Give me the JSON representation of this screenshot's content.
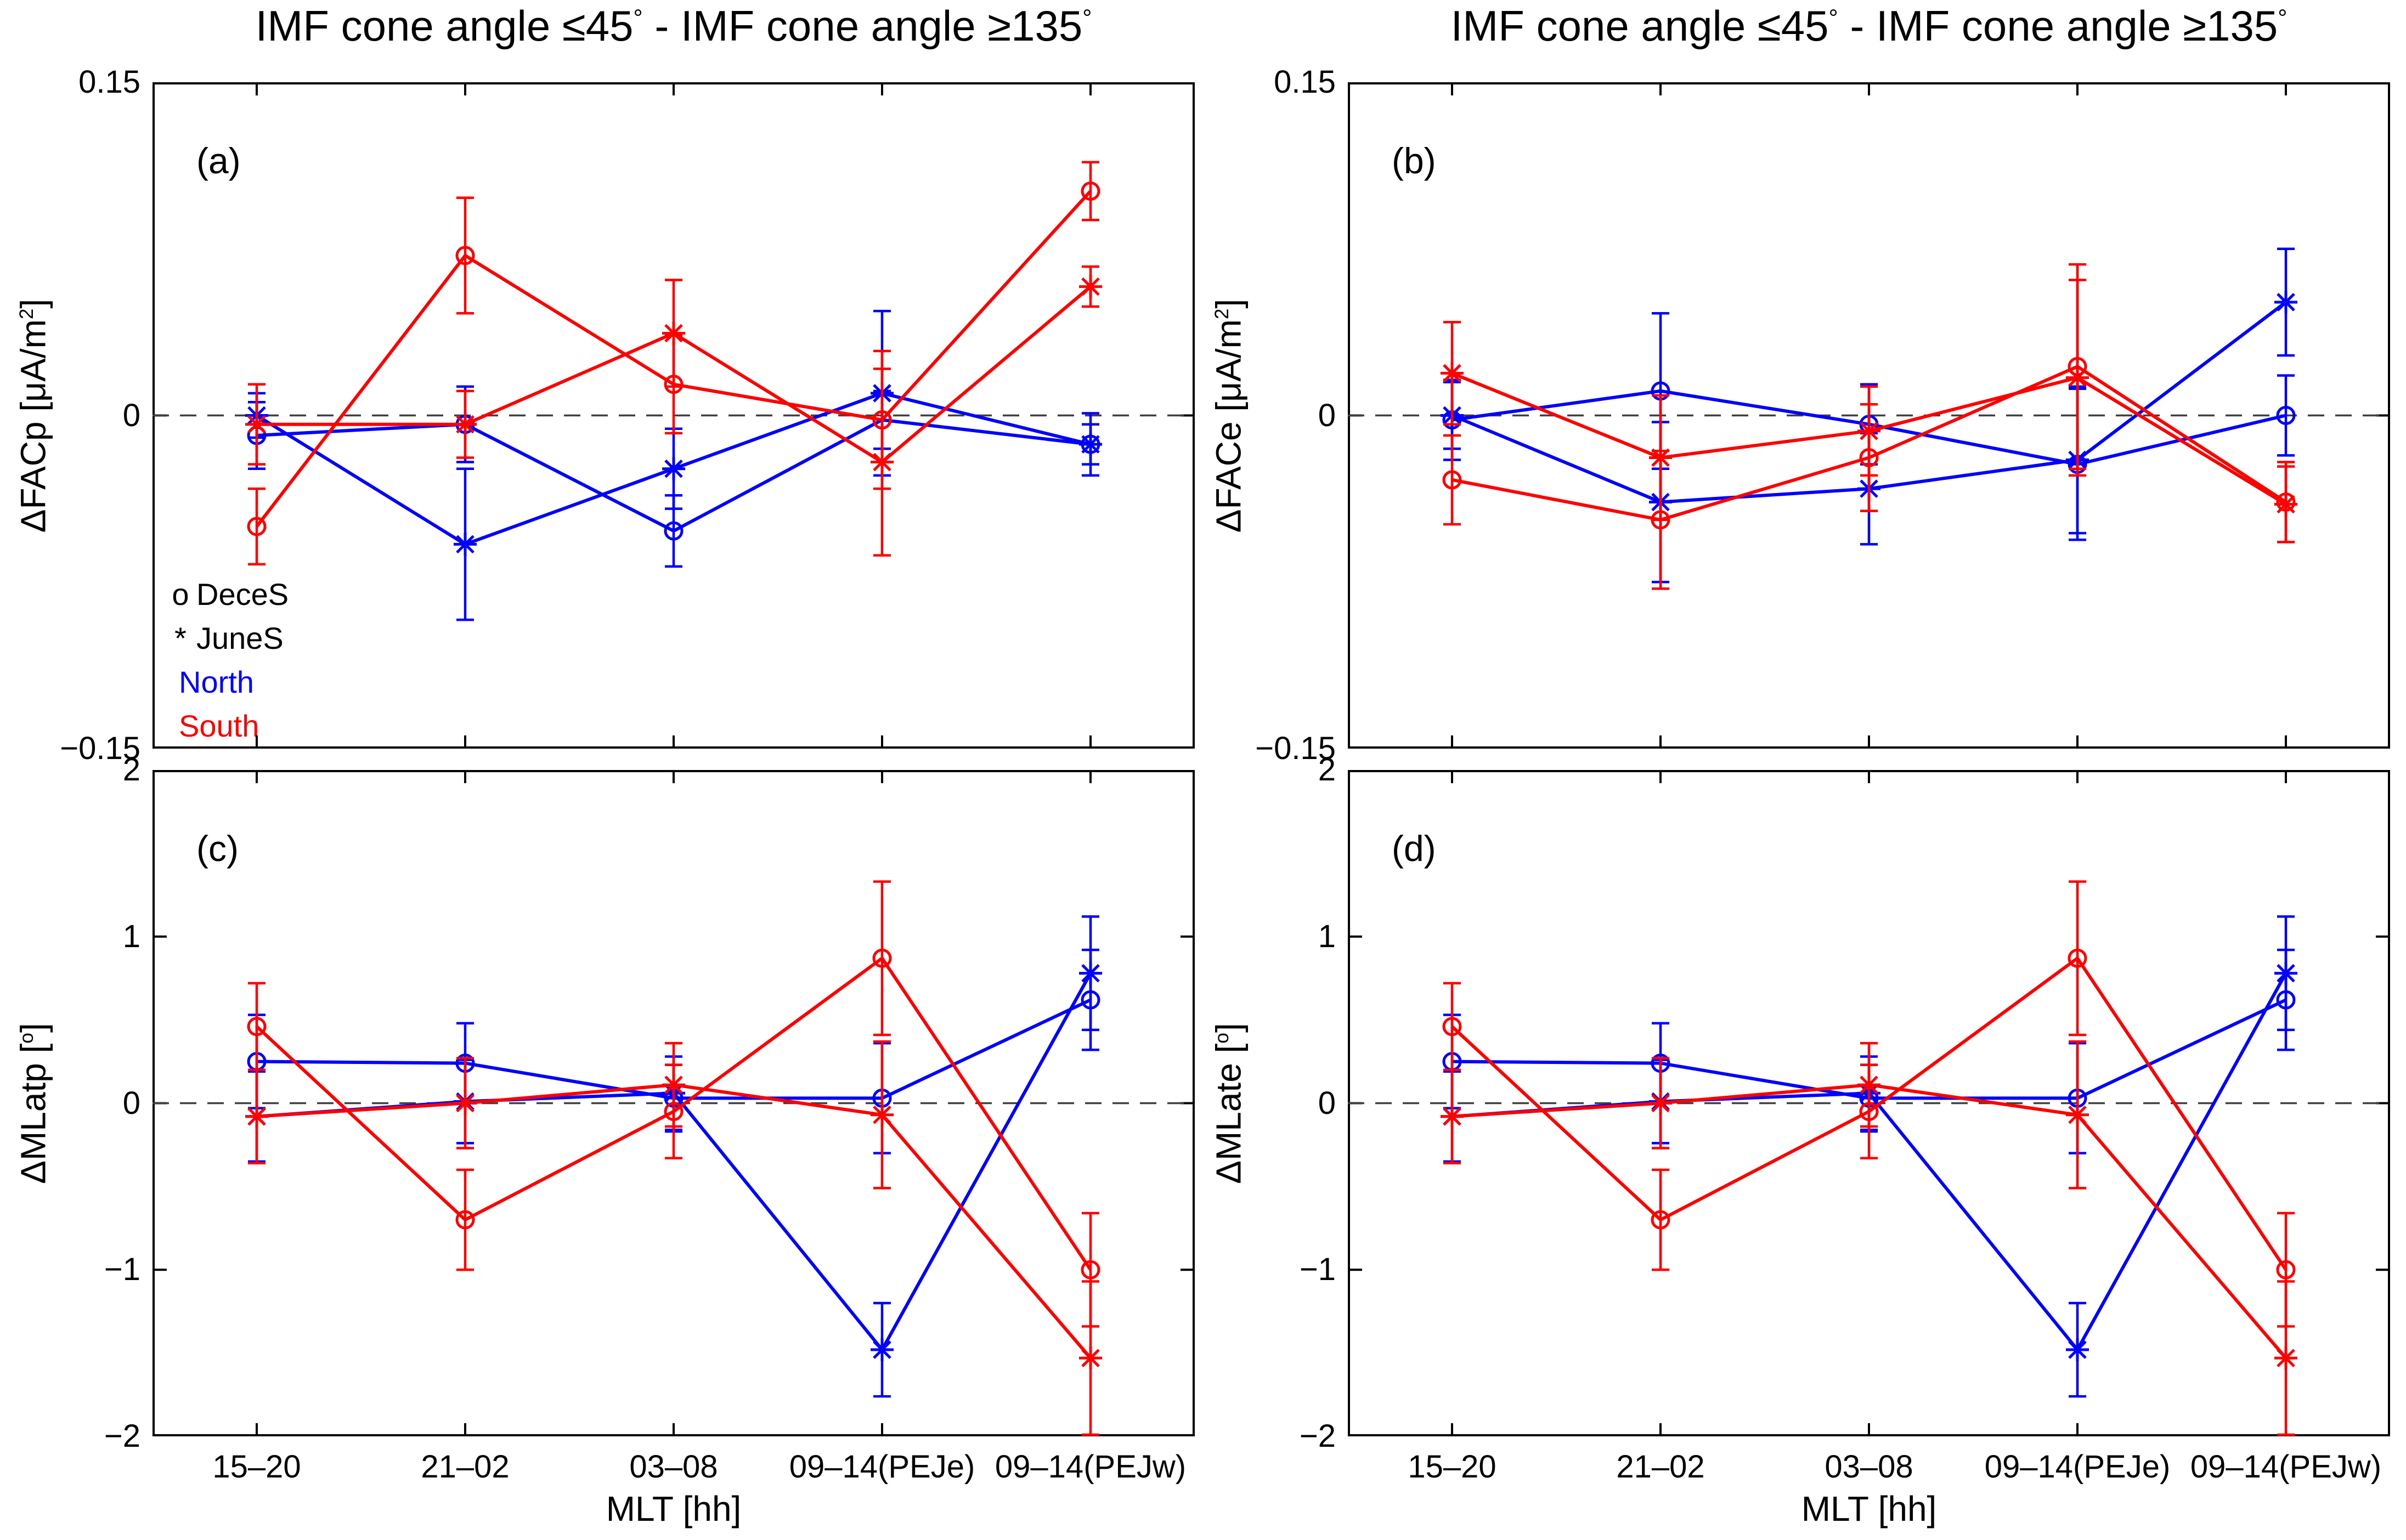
{
  "titles": {
    "left": {
      "parts": [
        "IMF cone angle ≤45",
        "°",
        " - IMF cone angle ≥135",
        "°"
      ]
    },
    "right": {
      "parts": [
        "IMF cone angle ≤45",
        "°",
        " - IMF cone angle ≥135",
        "°"
      ]
    }
  },
  "x_axis": {
    "label": "MLT [hh]",
    "categories": [
      "15–20",
      "21–02",
      "03–08",
      "09–14(PEJe)",
      "09–14(PEJw)"
    ]
  },
  "legend": {
    "items": [
      {
        "marker": "o",
        "label": "DeceS",
        "color": "#000000"
      },
      {
        "marker": "*",
        "label": "JuneS",
        "color": "#000000"
      },
      {
        "marker": "",
        "label": "North",
        "color": "#0000FF"
      },
      {
        "marker": "",
        "label": "South",
        "color": "#FF0000"
      }
    ]
  },
  "colors": {
    "north": "#0000FF",
    "south": "#FF0000",
    "zero_line": "#404040",
    "frame": "#000000"
  },
  "chart_data": [
    {
      "id": "a",
      "type": "line",
      "panel_label": "(a)",
      "ylabel": "ΔFACp [μA/m2]",
      "ylabel_parts": {
        "base": "ΔFACp [μA/m",
        "sup": "2",
        "close": "]"
      },
      "ylim": [
        -0.15,
        0.15
      ],
      "yticks": [
        0.15,
        0,
        -0.15
      ],
      "ytick_labels": [
        "0.15",
        "0",
        "−0.15"
      ],
      "zero_line": true,
      "show_xtick_labels": false,
      "series": [
        {
          "name": "North DeceS",
          "hemisphere": "North",
          "season": "DeceS",
          "color": "#0000FF",
          "marker": "o",
          "values": [
            -0.009,
            -0.004,
            -0.052,
            -0.002,
            -0.013
          ],
          "errors": [
            0.015,
            0.017,
            0.016,
            0.013,
            0.009
          ]
        },
        {
          "name": "North JuneS",
          "hemisphere": "North",
          "season": "JuneS",
          "color": "#0000FF",
          "marker": "*",
          "values": [
            0.0,
            -0.058,
            -0.024,
            0.01,
            -0.013
          ],
          "errors": [
            0.01,
            0.034,
            0.018,
            0.037,
            0.014
          ]
        },
        {
          "name": "South DeceS",
          "hemisphere": "South",
          "season": "DeceS",
          "color": "#FF0000",
          "marker": "o",
          "values": [
            -0.05,
            0.072,
            0.014,
            -0.002,
            0.101
          ],
          "errors": [
            0.017,
            0.026,
            0.022,
            0.031,
            0.013
          ]
        },
        {
          "name": "South JuneS",
          "hemisphere": "South",
          "season": "JuneS",
          "color": "#FF0000",
          "marker": "*",
          "values": [
            -0.004,
            -0.004,
            0.037,
            -0.021,
            0.058
          ],
          "errors": [
            0.018,
            0.015,
            0.024,
            0.042,
            0.009
          ]
        }
      ]
    },
    {
      "id": "b",
      "type": "line",
      "panel_label": "(b)",
      "ylabel": "ΔFACe [μA/m2]",
      "ylabel_parts": {
        "base": "ΔFACe [μA/m",
        "sup": "2",
        "close": "]"
      },
      "ylim": [
        -0.15,
        0.15
      ],
      "yticks": [
        0.15,
        0,
        -0.15
      ],
      "ytick_labels": [
        "0.15",
        "0",
        "−0.15"
      ],
      "zero_line": true,
      "show_xtick_labels": false,
      "series": [
        {
          "name": "North DeceS",
          "hemisphere": "North",
          "season": "DeceS",
          "color": "#0000FF",
          "marker": "o",
          "values": [
            -0.002,
            0.011,
            -0.004,
            -0.022,
            0.0
          ],
          "errors": [
            0.018,
            0.035,
            0.018,
            0.034,
            0.018
          ]
        },
        {
          "name": "North JuneS",
          "hemisphere": "North",
          "season": "JuneS",
          "color": "#0000FF",
          "marker": "*",
          "values": [
            0.0,
            -0.039,
            -0.033,
            -0.02,
            0.051
          ],
          "errors": [
            0.015,
            0.036,
            0.025,
            0.033,
            0.024
          ]
        },
        {
          "name": "South DeceS",
          "hemisphere": "South",
          "season": "DeceS",
          "color": "#FF0000",
          "marker": "o",
          "values": [
            -0.029,
            -0.047,
            -0.019,
            0.022,
            -0.039
          ],
          "errors": [
            0.02,
            0.031,
            0.024,
            0.046,
            0.018
          ]
        },
        {
          "name": "South JuneS",
          "hemisphere": "South",
          "season": "JuneS",
          "color": "#FF0000",
          "marker": "*",
          "values": [
            0.019,
            -0.019,
            -0.007,
            0.017,
            -0.04
          ],
          "errors": [
            0.023,
            0.028,
            0.02,
            0.044,
            0.017
          ]
        }
      ]
    },
    {
      "id": "c",
      "type": "line",
      "panel_label": "(c)",
      "ylabel": "ΔMLatp [o]",
      "ylabel_parts": {
        "base": "ΔMLatp [",
        "sup": "o",
        "close": "]"
      },
      "ylim": [
        -2,
        2
      ],
      "yticks": [
        2,
        1,
        0,
        -1,
        -2
      ],
      "ytick_labels": [
        "2",
        "1",
        "0",
        "−1",
        "−2"
      ],
      "zero_line": true,
      "show_xtick_labels": true,
      "series": [
        {
          "name": "North DeceS",
          "hemisphere": "North",
          "season": "DeceS",
          "color": "#0000FF",
          "marker": "o",
          "values": [
            0.25,
            0.24,
            0.03,
            0.03,
            0.62
          ],
          "errors": [
            0.28,
            0.24,
            0.2,
            0.33,
            0.3
          ]
        },
        {
          "name": "North JuneS",
          "hemisphere": "North",
          "season": "JuneS",
          "color": "#0000FF",
          "marker": "*",
          "values": [
            -0.08,
            0.01,
            0.06,
            -1.48,
            0.78
          ],
          "errors": [
            0.27,
            0.25,
            0.22,
            0.28,
            0.34
          ]
        },
        {
          "name": "South DeceS",
          "hemisphere": "South",
          "season": "DeceS",
          "color": "#FF0000",
          "marker": "o",
          "values": [
            0.46,
            -0.7,
            -0.05,
            0.87,
            -1.0
          ],
          "errors": [
            0.26,
            0.3,
            0.28,
            0.46,
            0.34
          ]
        },
        {
          "name": "South JuneS",
          "hemisphere": "South",
          "season": "JuneS",
          "color": "#FF0000",
          "marker": "*",
          "values": [
            -0.08,
            0.0,
            0.11,
            -0.07,
            -1.53
          ],
          "errors": [
            0.28,
            0.27,
            0.25,
            0.44,
            0.46
          ]
        }
      ]
    },
    {
      "id": "d",
      "type": "line",
      "panel_label": "(d)",
      "ylabel": "ΔMLate [o]",
      "ylabel_parts": {
        "base": "ΔMLate [",
        "sup": "o",
        "close": "]"
      },
      "ylim": [
        -2,
        2
      ],
      "yticks": [
        2,
        1,
        0,
        -1,
        -2
      ],
      "ytick_labels": [
        "2",
        "1",
        "0",
        "−1",
        "−2"
      ],
      "zero_line": true,
      "show_xtick_labels": true,
      "series": [
        {
          "name": "North DeceS",
          "hemisphere": "North",
          "season": "DeceS",
          "color": "#0000FF",
          "marker": "o",
          "values": [
            0.25,
            0.24,
            0.03,
            0.03,
            0.62
          ],
          "errors": [
            0.28,
            0.24,
            0.2,
            0.33,
            0.3
          ]
        },
        {
          "name": "North JuneS",
          "hemisphere": "North",
          "season": "JuneS",
          "color": "#0000FF",
          "marker": "*",
          "values": [
            -0.08,
            0.01,
            0.06,
            -1.48,
            0.78
          ],
          "errors": [
            0.27,
            0.25,
            0.22,
            0.28,
            0.34
          ]
        },
        {
          "name": "South DeceS",
          "hemisphere": "South",
          "season": "DeceS",
          "color": "#FF0000",
          "marker": "o",
          "values": [
            0.46,
            -0.7,
            -0.05,
            0.87,
            -1.0
          ],
          "errors": [
            0.26,
            0.3,
            0.28,
            0.46,
            0.34
          ]
        },
        {
          "name": "South JuneS",
          "hemisphere": "South",
          "season": "JuneS",
          "color": "#FF0000",
          "marker": "*",
          "values": [
            -0.08,
            0.0,
            0.11,
            -0.07,
            -1.53
          ],
          "errors": [
            0.28,
            0.27,
            0.25,
            0.44,
            0.46
          ]
        }
      ]
    }
  ]
}
